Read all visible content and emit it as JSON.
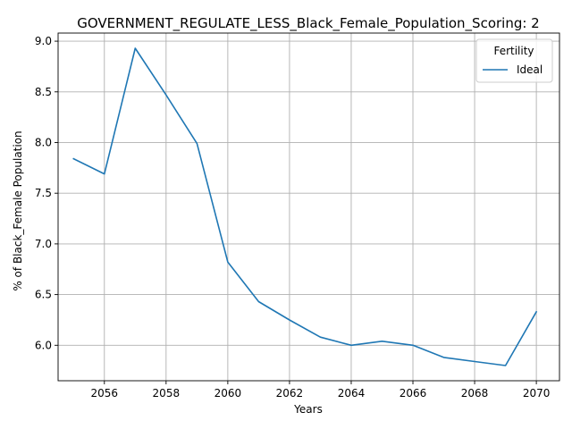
{
  "chart_data": {
    "type": "line",
    "title": "GOVERNMENT_REGULATE_LESS_Black_Female_Population_Scoring: 2",
    "xlabel": "Years",
    "ylabel": "% of Black_Female Population",
    "xlim": [
      2054.5,
      2070.75
    ],
    "ylim": [
      5.65,
      9.08
    ],
    "xticks": [
      2056,
      2058,
      2060,
      2062,
      2064,
      2066,
      2068,
      2070
    ],
    "yticks": [
      6.0,
      6.5,
      7.0,
      7.5,
      8.0,
      8.5,
      9.0
    ],
    "xtick_labels": [
      "2056",
      "2058",
      "2060",
      "2062",
      "2064",
      "2066",
      "2068",
      "2070"
    ],
    "ytick_labels": [
      "6.0",
      "6.5",
      "7.0",
      "7.5",
      "8.0",
      "8.5",
      "9.0"
    ],
    "grid": true,
    "legend": {
      "title": "Fertility",
      "placement": "top-right"
    },
    "series": [
      {
        "name": "Ideal",
        "color": "#1f77b4",
        "x": [
          2055,
          2056,
          2057,
          2058,
          2059,
          2060,
          2061,
          2062,
          2063,
          2064,
          2065,
          2066,
          2067,
          2068,
          2069,
          2070
        ],
        "y": [
          7.84,
          7.69,
          8.93,
          8.47,
          7.99,
          6.82,
          6.43,
          6.25,
          6.08,
          6.0,
          6.04,
          6.0,
          5.88,
          5.84,
          5.8,
          6.33
        ]
      }
    ]
  }
}
